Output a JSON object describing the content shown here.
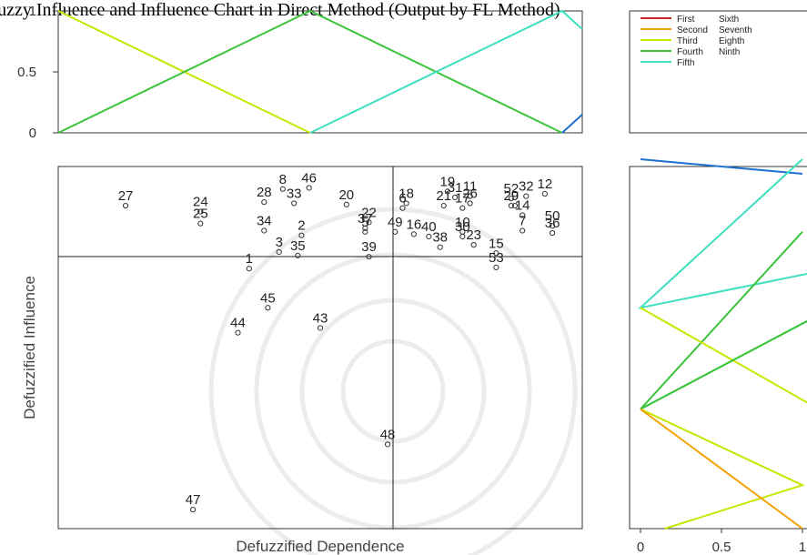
{
  "title": "Fuzzy Influence and Influence Chart in Direct Method (Output by FL Method)",
  "colors": {
    "First": "#c62828",
    "Second": "#f2a100",
    "Third": "#c8e600",
    "Fourth": "#3cc43c",
    "Fifth": "#3ee0c0",
    "Sixth": "#1f6fd0",
    "watermark": "#ececec"
  },
  "chart_data": [
    {
      "id": "membership-top",
      "type": "line",
      "ylim": [
        0,
        1
      ],
      "xlim": [
        0,
        1.04
      ],
      "y_ticks": [
        "0",
        "0.5",
        "1"
      ],
      "y_tick_values": [
        0,
        0.5,
        1
      ],
      "series": [
        {
          "key": "Third",
          "x": [
            0,
            0.5
          ],
          "y": [
            1,
            0
          ]
        },
        {
          "key": "Fourth",
          "x": [
            0,
            0.5,
            1.0
          ],
          "y": [
            0,
            1,
            0
          ]
        },
        {
          "key": "Fifth",
          "x": [
            0.5,
            1.0,
            1.04
          ],
          "y": [
            0,
            1,
            0.85
          ]
        },
        {
          "key": "Sixth",
          "x": [
            1.0,
            1.04
          ],
          "y": [
            0,
            0.15
          ]
        }
      ]
    },
    {
      "id": "legend",
      "type": "legend",
      "entries": [
        {
          "left": "First",
          "right": "Sixth"
        },
        {
          "left": "Second",
          "right": "Seventh"
        },
        {
          "left": "Third",
          "right": "Eighth"
        },
        {
          "left": "Fourth",
          "right": "Ninth"
        },
        {
          "left": "Fifth",
          "right": ""
        }
      ]
    },
    {
      "id": "scatter",
      "type": "scatter",
      "xlabel": "Defuzzified Dependence",
      "ylabel": "Defuzzified Influence",
      "points": [
        {
          "label": "1",
          "x": 0.541,
          "y": 0.459
        },
        {
          "label": "2",
          "x": 0.555,
          "y": 0.487
        },
        {
          "label": "3",
          "x": 0.549,
          "y": 0.473
        },
        {
          "label": "5",
          "x": 0.572,
          "y": 0.49
        },
        {
          "label": "6",
          "x": 0.582,
          "y": 0.51
        },
        {
          "label": "7",
          "x": 0.614,
          "y": 0.491
        },
        {
          "label": "8",
          "x": 0.55,
          "y": 0.526
        },
        {
          "label": "9",
          "x": 0.612,
          "y": 0.512
        },
        {
          "label": "10",
          "x": 0.598,
          "y": 0.49
        },
        {
          "label": "11",
          "x": 0.6,
          "y": 0.52
        },
        {
          "label": "12",
          "x": 0.62,
          "y": 0.522
        },
        {
          "label": "14",
          "x": 0.614,
          "y": 0.504
        },
        {
          "label": "15",
          "x": 0.607,
          "y": 0.472
        },
        {
          "label": "16",
          "x": 0.585,
          "y": 0.488
        },
        {
          "label": "17",
          "x": 0.598,
          "y": 0.51
        },
        {
          "label": "18",
          "x": 0.583,
          "y": 0.514
        },
        {
          "label": "19",
          "x": 0.594,
          "y": 0.524
        },
        {
          "label": "20",
          "x": 0.567,
          "y": 0.513
        },
        {
          "label": "21",
          "x": 0.593,
          "y": 0.512
        },
        {
          "label": "22",
          "x": 0.573,
          "y": 0.498
        },
        {
          "label": "23",
          "x": 0.601,
          "y": 0.479
        },
        {
          "label": "24",
          "x": 0.528,
          "y": 0.507
        },
        {
          "label": "25",
          "x": 0.528,
          "y": 0.497
        },
        {
          "label": "26",
          "x": 0.6,
          "y": 0.514
        },
        {
          "label": "27",
          "x": 0.508,
          "y": 0.512
        },
        {
          "label": "28",
          "x": 0.545,
          "y": 0.515
        },
        {
          "label": "29",
          "x": 0.611,
          "y": 0.512
        },
        {
          "label": "30",
          "x": 0.598,
          "y": 0.486
        },
        {
          "label": "31",
          "x": 0.596,
          "y": 0.519
        },
        {
          "label": "32",
          "x": 0.615,
          "y": 0.52
        },
        {
          "label": "33",
          "x": 0.553,
          "y": 0.514
        },
        {
          "label": "34",
          "x": 0.545,
          "y": 0.491
        },
        {
          "label": "35",
          "x": 0.554,
          "y": 0.47
        },
        {
          "label": "36",
          "x": 0.622,
          "y": 0.489
        },
        {
          "label": "37",
          "x": 0.572,
          "y": 0.493
        },
        {
          "label": "38",
          "x": 0.592,
          "y": 0.477
        },
        {
          "label": "39",
          "x": 0.573,
          "y": 0.469
        },
        {
          "label": "40",
          "x": 0.589,
          "y": 0.486
        },
        {
          "label": "43",
          "x": 0.56,
          "y": 0.409
        },
        {
          "label": "44",
          "x": 0.538,
          "y": 0.405
        },
        {
          "label": "45",
          "x": 0.546,
          "y": 0.426
        },
        {
          "label": "46",
          "x": 0.557,
          "y": 0.527
        },
        {
          "label": "47",
          "x": 0.526,
          "y": 0.256
        },
        {
          "label": "48",
          "x": 0.578,
          "y": 0.311
        },
        {
          "label": "49",
          "x": 0.58,
          "y": 0.49
        },
        {
          "label": "50",
          "x": 0.622,
          "y": 0.495
        },
        {
          "label": "52",
          "x": 0.611,
          "y": 0.518
        },
        {
          "label": "53",
          "x": 0.607,
          "y": 0.46
        }
      ]
    },
    {
      "id": "membership-right",
      "type": "line",
      "orientation": "horizontal",
      "xlim": [
        0,
        1.1
      ],
      "x_ticks": [
        "0",
        "0.5",
        "1"
      ],
      "x_tick_values": [
        0,
        0.5,
        1
      ],
      "ylim": [
        0,
        1
      ],
      "series": [
        {
          "key": "Sixth",
          "x": [
            0,
            1.0
          ],
          "y": [
            1.02,
            0.98
          ]
        },
        {
          "key": "Fifth",
          "x": [
            1.0,
            0,
            1.1
          ],
          "y": [
            1.02,
            0.61,
            0.71
          ]
        },
        {
          "key": "Fourth",
          "x": [
            1.0,
            0,
            1.1
          ],
          "y": [
            0.82,
            0.33,
            0.59
          ]
        },
        {
          "key": "Third",
          "x": [
            0,
            1.1
          ],
          "y": [
            0.61,
            0.33
          ]
        },
        {
          "key": "Third",
          "x": [
            0,
            1.0,
            0.15
          ],
          "y": [
            0.33,
            0.12,
            0.0
          ]
        },
        {
          "key": "Fourth",
          "x": [
            1.1,
            0
          ],
          "y": [
            0.59,
            0.33
          ]
        },
        {
          "key": "Second",
          "x": [
            0,
            1.0
          ],
          "y": [
            0.33,
            0.0
          ]
        }
      ]
    }
  ]
}
